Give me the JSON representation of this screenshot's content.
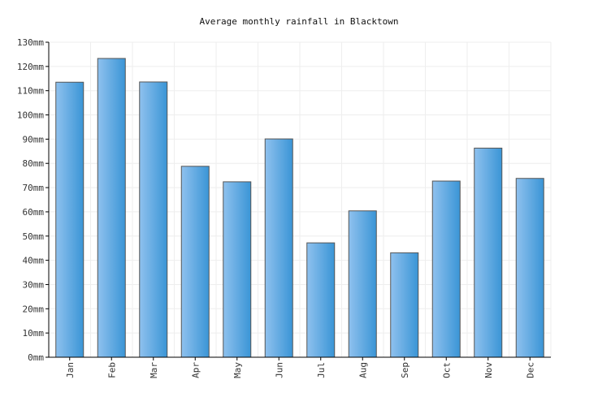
{
  "chart_data": {
    "type": "bar",
    "title": "Average monthly rainfall in Blacktown",
    "categories": [
      "Jan",
      "Feb",
      "Mar",
      "Apr",
      "May",
      "Jun",
      "Jul",
      "Aug",
      "Sep",
      "Oct",
      "Nov",
      "Dec"
    ],
    "values": [
      113.5,
      123.3,
      113.6,
      78.8,
      72.4,
      90.1,
      47.2,
      60.4,
      43.1,
      72.7,
      86.3,
      73.8
    ],
    "ylim": [
      0,
      130
    ],
    "yticks": [
      "0mm",
      "10mm",
      "20mm",
      "30mm",
      "40mm",
      "50mm",
      "60mm",
      "70mm",
      "80mm",
      "90mm",
      "100mm",
      "110mm",
      "120mm",
      "130mm"
    ],
    "grid": true,
    "colors": {
      "bar_light": "#8fc1ee",
      "bar_dark": "#3a95d6",
      "bar_stroke": "#555555",
      "grid": "#eeeeee",
      "axis": "#000000",
      "text": "#333333"
    }
  }
}
